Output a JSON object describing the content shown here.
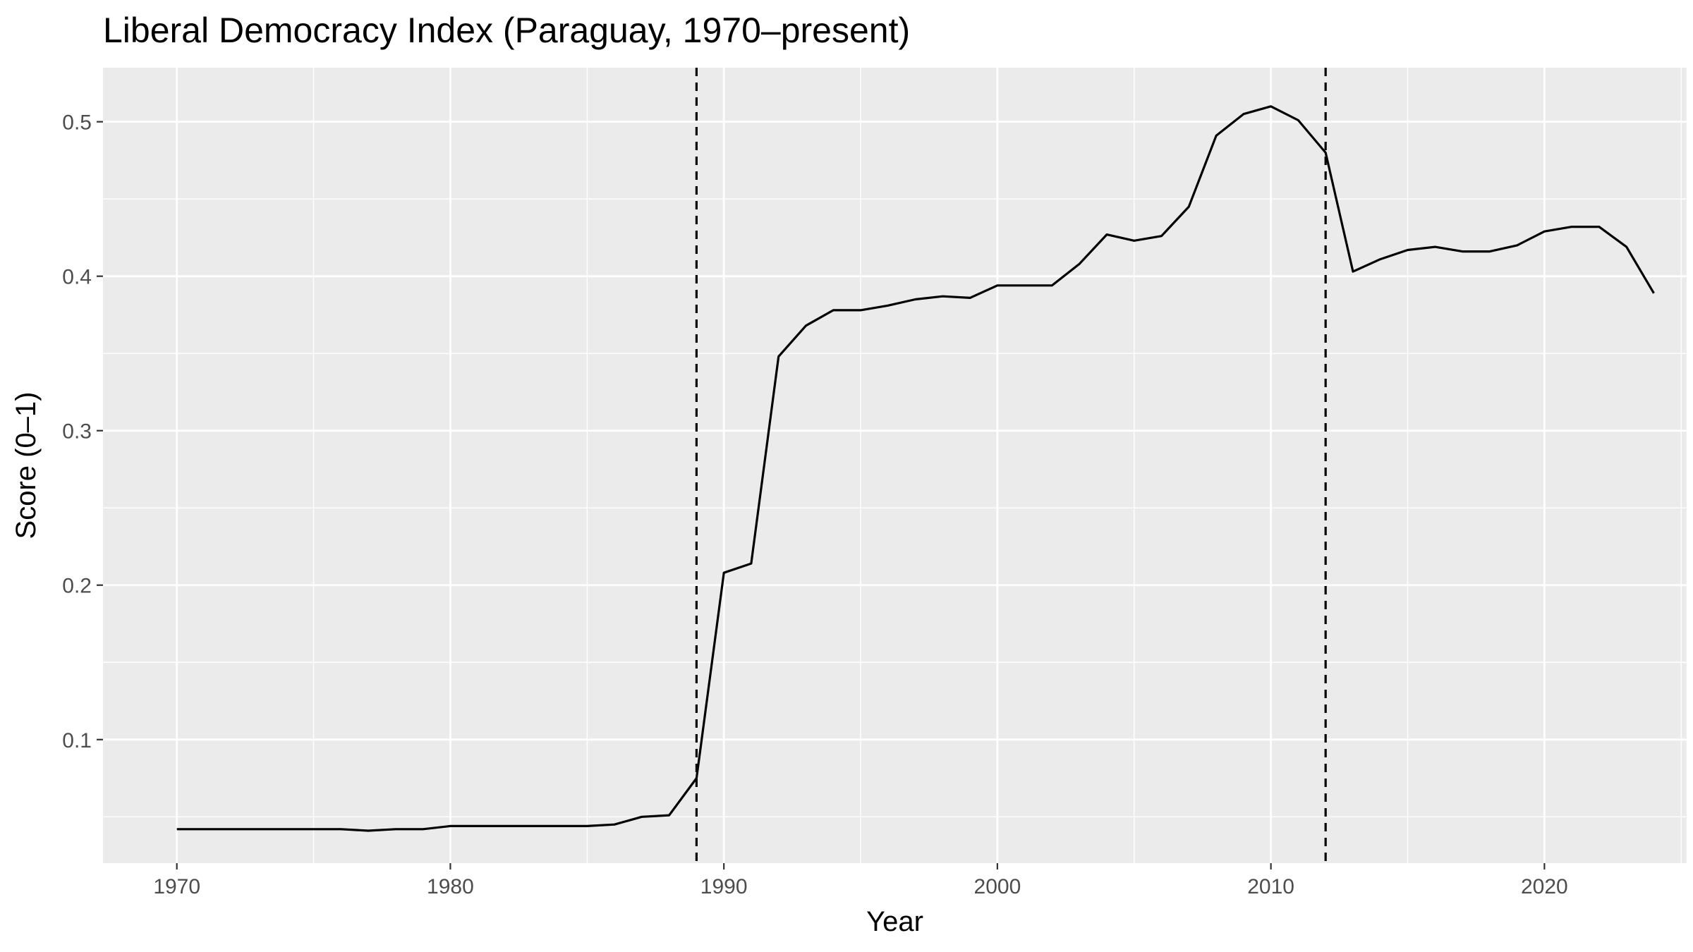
{
  "chart_data": {
    "type": "line",
    "title": "Liberal Democracy Index (Paraguay, 1970–present)",
    "xlabel": "Year",
    "ylabel": "Score (0–1)",
    "xlim": [
      1967.3,
      2025.2
    ],
    "ylim": [
      0.02,
      0.535
    ],
    "x_ticks": [
      1970,
      1980,
      1990,
      2000,
      2010,
      2020
    ],
    "x_tick_labels": [
      "1970",
      "1980",
      "1990",
      "2000",
      "2010",
      "2020"
    ],
    "x_minor_ticks": [
      1975,
      1985,
      1995,
      2005,
      2015,
      2025
    ],
    "y_ticks": [
      0.1,
      0.2,
      0.3,
      0.4,
      0.5
    ],
    "y_tick_labels": [
      "0.1",
      "0.2",
      "0.3",
      "0.4",
      "0.5"
    ],
    "y_minor_ticks": [
      0.05,
      0.15,
      0.25,
      0.35,
      0.45
    ],
    "grid": true,
    "panel_background": "#ebebeb",
    "line_color": "#000000",
    "series": [
      {
        "x": [
          1970,
          1971,
          1972,
          1973,
          1974,
          1975,
          1976,
          1977,
          1978,
          1979,
          1980,
          1981,
          1982,
          1983,
          1984,
          1985,
          1986,
          1987,
          1988,
          1989,
          1990,
          1991,
          1992,
          1993,
          1994,
          1995,
          1996,
          1997,
          1998,
          1999,
          2000,
          2001,
          2002,
          2003,
          2004,
          2005,
          2006,
          2007,
          2008,
          2009,
          2010,
          2011,
          2012,
          2013,
          2014,
          2015,
          2016,
          2017,
          2018,
          2019,
          2020,
          2021,
          2022,
          2023,
          2024
        ],
        "values": [
          0.042,
          0.042,
          0.042,
          0.042,
          0.042,
          0.042,
          0.042,
          0.041,
          0.042,
          0.042,
          0.044,
          0.044,
          0.044,
          0.044,
          0.044,
          0.044,
          0.045,
          0.05,
          0.051,
          0.075,
          0.208,
          0.214,
          0.348,
          0.368,
          0.378,
          0.378,
          0.381,
          0.385,
          0.387,
          0.386,
          0.394,
          0.394,
          0.394,
          0.408,
          0.427,
          0.423,
          0.426,
          0.445,
          0.491,
          0.505,
          0.51,
          0.501,
          0.48,
          0.403,
          0.411,
          0.417,
          0.419,
          0.416,
          0.416,
          0.42,
          0.429,
          0.432,
          0.432,
          0.419,
          0.389
        ]
      }
    ],
    "vlines": [
      {
        "x": 1989,
        "style": "dashed"
      },
      {
        "x": 2012,
        "style": "dashed"
      }
    ]
  }
}
